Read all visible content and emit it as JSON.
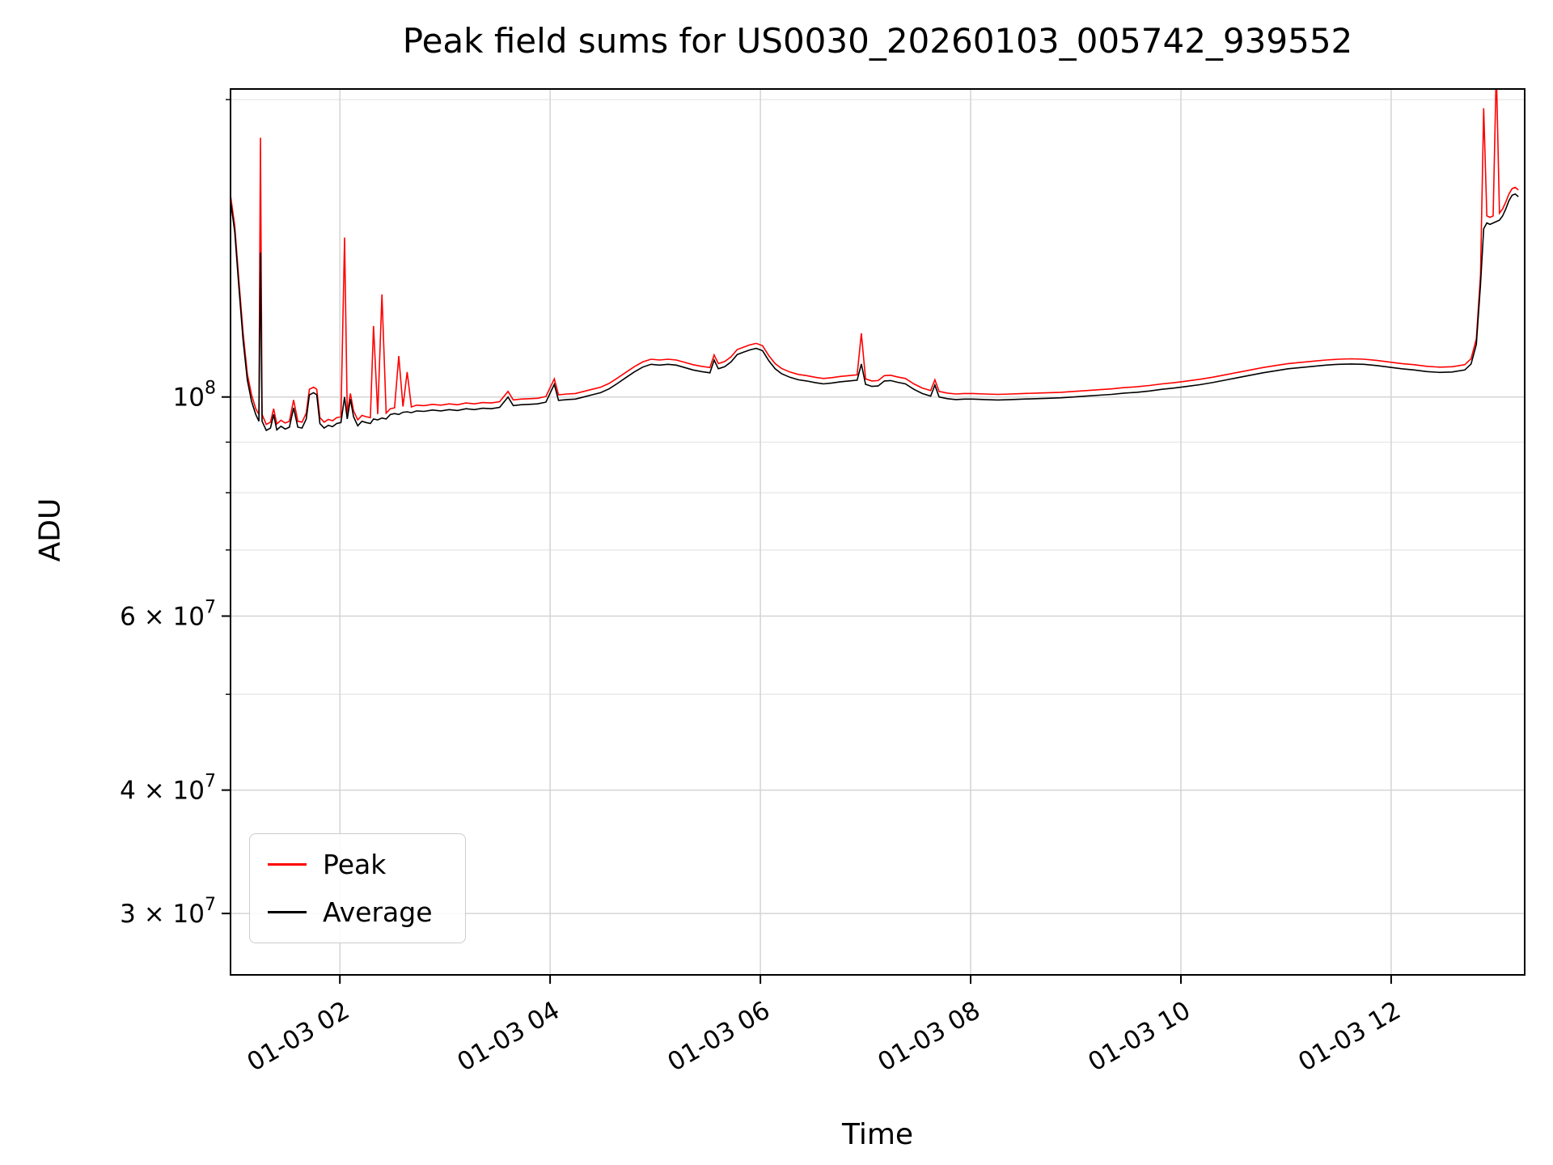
{
  "chart_data": {
    "type": "line",
    "title": "Peak field sums for US0030_20260103_005742_939552",
    "xlabel": "Time",
    "ylabel": "ADU",
    "legend_position": "lower left",
    "grid": true,
    "grid_major_color": "#d4d4d4",
    "grid_minor_color": "#e7e7e7",
    "y_scale": "log",
    "y_unit": "ADU, values stored in millions (1e6)",
    "x_unit": "hours since 2026-01-03 00:00",
    "xlim_hours": [
      0.96,
      13.27
    ],
    "ylim_millions": [
      26,
      205
    ],
    "x_ticks": [
      {
        "value": 2,
        "label": "01-03 02"
      },
      {
        "value": 4,
        "label": "01-03 04"
      },
      {
        "value": 6,
        "label": "01-03 06"
      },
      {
        "value": 8,
        "label": "01-03 08"
      },
      {
        "value": 10,
        "label": "01-03 10"
      },
      {
        "value": 12,
        "label": "01-03 12"
      }
    ],
    "y_ticks": [
      {
        "value": 100,
        "base": "10",
        "exp": "8"
      },
      {
        "value": 60,
        "base": "6 × 10",
        "exp": "7"
      },
      {
        "value": 40,
        "base": "4 × 10",
        "exp": "7"
      },
      {
        "value": 30,
        "base": "3 × 10",
        "exp": "7"
      }
    ],
    "y_minor_gridlines": [
      50,
      70,
      80,
      90,
      200
    ],
    "series": [
      {
        "name": "Peak",
        "color": "#ff0000",
        "column": 2
      },
      {
        "name": "Average",
        "color": "#000000",
        "column": 1
      }
    ],
    "columns": [
      "time_hours",
      "average_millions",
      "peak_millions"
    ],
    "points": [
      [
        0.96,
        158,
        160
      ],
      [
        1.0,
        147,
        149
      ],
      [
        1.04,
        129,
        131
      ],
      [
        1.08,
        114,
        116
      ],
      [
        1.12,
        104,
        105.5
      ],
      [
        1.16,
        99,
        100.5
      ],
      [
        1.2,
        96,
        97.3
      ],
      [
        1.23,
        94.5,
        96
      ],
      [
        1.245,
        140,
        183
      ],
      [
        1.26,
        94.5,
        96
      ],
      [
        1.3,
        92.5,
        93.8
      ],
      [
        1.34,
        93,
        94.3
      ],
      [
        1.37,
        96,
        97.3
      ],
      [
        1.4,
        92.6,
        93.9
      ],
      [
        1.44,
        93.4,
        94.7
      ],
      [
        1.48,
        92.8,
        94.1
      ],
      [
        1.52,
        93.2,
        94.5
      ],
      [
        1.56,
        97.5,
        99.3
      ],
      [
        1.6,
        93.2,
        94.5
      ],
      [
        1.64,
        93,
        94.3
      ],
      [
        1.68,
        95,
        96.3
      ],
      [
        1.71,
        100.5,
        101.8
      ],
      [
        1.75,
        101,
        102.3
      ],
      [
        1.78,
        100.5,
        101.8
      ],
      [
        1.81,
        94,
        95.3
      ],
      [
        1.85,
        93,
        94.3
      ],
      [
        1.89,
        93.6,
        94.9
      ],
      [
        1.93,
        93.3,
        94.6
      ],
      [
        1.97,
        94,
        95.3
      ],
      [
        2.01,
        94.2,
        95.5
      ],
      [
        2.045,
        100,
        145
      ],
      [
        2.07,
        95,
        96.3
      ],
      [
        2.1,
        99.5,
        100.8
      ],
      [
        2.13,
        95.5,
        96.8
      ],
      [
        2.17,
        93.5,
        94.8
      ],
      [
        2.21,
        94.5,
        95.8
      ],
      [
        2.25,
        94.2,
        95.5
      ],
      [
        2.29,
        94,
        95.3
      ],
      [
        2.32,
        95,
        118
      ],
      [
        2.36,
        94.8,
        96.1
      ],
      [
        2.4,
        95.2,
        127
      ],
      [
        2.44,
        95,
        96.3
      ],
      [
        2.48,
        96,
        97.3
      ],
      [
        2.52,
        96.2,
        97.5
      ],
      [
        2.56,
        96,
        110
      ],
      [
        2.6,
        96.5,
        97.8
      ],
      [
        2.64,
        96.6,
        106
      ],
      [
        2.68,
        96.4,
        97.7
      ],
      [
        2.73,
        96.8,
        98.1
      ],
      [
        2.8,
        96.7,
        98
      ],
      [
        2.88,
        97,
        98.3
      ],
      [
        2.96,
        96.8,
        98.1
      ],
      [
        3.04,
        97.1,
        98.4
      ],
      [
        3.12,
        96.9,
        98.2
      ],
      [
        3.2,
        97.3,
        98.6
      ],
      [
        3.28,
        97.1,
        98.4
      ],
      [
        3.36,
        97.4,
        98.7
      ],
      [
        3.44,
        97.3,
        98.6
      ],
      [
        3.52,
        97.6,
        98.9
      ],
      [
        3.6,
        100,
        101.3
      ],
      [
        3.65,
        98,
        99.3
      ],
      [
        3.72,
        98.2,
        99.5
      ],
      [
        3.8,
        98.3,
        99.6
      ],
      [
        3.88,
        98.4,
        99.7
      ],
      [
        3.96,
        98.8,
        100.1
      ],
      [
        4.04,
        103,
        104.3
      ],
      [
        4.08,
        99.2,
        100.5
      ],
      [
        4.16,
        99.4,
        100.7
      ],
      [
        4.24,
        99.5,
        100.8
      ],
      [
        4.32,
        100,
        101.3
      ],
      [
        4.4,
        100.5,
        101.8
      ],
      [
        4.48,
        101,
        102.3
      ],
      [
        4.56,
        101.9,
        103.2
      ],
      [
        4.64,
        103.2,
        104.5
      ],
      [
        4.72,
        104.6,
        105.9
      ],
      [
        4.8,
        106,
        107.3
      ],
      [
        4.88,
        107.2,
        108.5
      ],
      [
        4.96,
        107.9,
        109.2
      ],
      [
        5.04,
        107.7,
        109
      ],
      [
        5.12,
        107.9,
        109.2
      ],
      [
        5.2,
        107.7,
        109
      ],
      [
        5.28,
        107.1,
        108.4
      ],
      [
        5.36,
        106.5,
        107.8
      ],
      [
        5.44,
        106.1,
        107.4
      ],
      [
        5.52,
        105.8,
        107.1
      ],
      [
        5.56,
        109,
        110.3
      ],
      [
        5.6,
        106.8,
        108.1
      ],
      [
        5.66,
        107.3,
        108.6
      ],
      [
        5.72,
        108.5,
        109.8
      ],
      [
        5.78,
        110.4,
        111.7
      ],
      [
        5.84,
        111,
        112.3
      ],
      [
        5.9,
        111.6,
        112.9
      ],
      [
        5.96,
        112,
        113.3
      ],
      [
        6.02,
        111.4,
        112.7
      ],
      [
        6.08,
        108.8,
        110.1
      ],
      [
        6.14,
        106.8,
        108.1
      ],
      [
        6.2,
        105.6,
        106.9
      ],
      [
        6.28,
        104.7,
        106
      ],
      [
        6.36,
        104.1,
        105.4
      ],
      [
        6.44,
        103.8,
        105.1
      ],
      [
        6.52,
        103.4,
        104.7
      ],
      [
        6.6,
        103.1,
        104.4
      ],
      [
        6.68,
        103.3,
        104.6
      ],
      [
        6.76,
        103.6,
        104.9
      ],
      [
        6.84,
        103.8,
        105.1
      ],
      [
        6.92,
        104,
        105.3
      ],
      [
        6.96,
        108,
        116
      ],
      [
        7.0,
        103,
        104.3
      ],
      [
        7.06,
        102.5,
        103.8
      ],
      [
        7.12,
        102.6,
        103.9
      ],
      [
        7.18,
        103.8,
        105.1
      ],
      [
        7.24,
        103.9,
        105.2
      ],
      [
        7.3,
        103.5,
        104.8
      ],
      [
        7.38,
        103.1,
        104.4
      ],
      [
        7.46,
        101.8,
        103.1
      ],
      [
        7.54,
        100.8,
        102.1
      ],
      [
        7.62,
        100.2,
        101.5
      ],
      [
        7.66,
        102.8,
        104.1
      ],
      [
        7.7,
        100,
        101.3
      ],
      [
        7.78,
        99.6,
        100.9
      ],
      [
        7.86,
        99.4,
        100.7
      ],
      [
        7.94,
        99.5,
        100.8
      ],
      [
        8.02,
        99.5,
        100.8
      ],
      [
        8.14,
        99.4,
        100.7
      ],
      [
        8.26,
        99.3,
        100.6
      ],
      [
        8.38,
        99.4,
        100.7
      ],
      [
        8.5,
        99.5,
        100.8
      ],
      [
        8.62,
        99.6,
        100.9
      ],
      [
        8.74,
        99.7,
        101
      ],
      [
        8.86,
        99.8,
        101.1
      ],
      [
        8.98,
        100,
        101.3
      ],
      [
        9.1,
        100.2,
        101.5
      ],
      [
        9.22,
        100.4,
        101.7
      ],
      [
        9.34,
        100.6,
        101.9
      ],
      [
        9.46,
        100.9,
        102.2
      ],
      [
        9.58,
        101.1,
        102.4
      ],
      [
        9.7,
        101.4,
        102.7
      ],
      [
        9.82,
        101.8,
        103.1
      ],
      [
        9.94,
        102.1,
        103.4
      ],
      [
        10.06,
        102.5,
        103.8
      ],
      [
        10.18,
        102.9,
        104.2
      ],
      [
        10.3,
        103.4,
        104.7
      ],
      [
        10.42,
        104,
        105.3
      ],
      [
        10.54,
        104.6,
        105.9
      ],
      [
        10.66,
        105.2,
        106.5
      ],
      [
        10.78,
        105.8,
        107.1
      ],
      [
        10.9,
        106.3,
        107.6
      ],
      [
        11.02,
        106.8,
        108.1
      ],
      [
        11.14,
        107.1,
        108.4
      ],
      [
        11.26,
        107.4,
        108.7
      ],
      [
        11.38,
        107.7,
        109
      ],
      [
        11.5,
        107.9,
        109.2
      ],
      [
        11.62,
        108,
        109.3
      ],
      [
        11.74,
        107.9,
        109.2
      ],
      [
        11.86,
        107.6,
        108.9
      ],
      [
        11.98,
        107.2,
        108.5
      ],
      [
        12.1,
        106.8,
        108.1
      ],
      [
        12.22,
        106.5,
        107.8
      ],
      [
        12.34,
        106.1,
        107.4
      ],
      [
        12.46,
        105.9,
        107.2
      ],
      [
        12.58,
        106,
        107.3
      ],
      [
        12.7,
        106.5,
        107.8
      ],
      [
        12.76,
        108,
        109.3
      ],
      [
        12.81,
        113,
        114.5
      ],
      [
        12.85,
        130,
        133
      ],
      [
        12.88,
        148,
        196
      ],
      [
        12.91,
        150,
        152.5
      ],
      [
        12.94,
        149.5,
        152
      ],
      [
        12.97,
        150,
        152.5
      ],
      [
        13.0,
        150.5,
        215
      ],
      [
        13.03,
        151,
        153.5
      ],
      [
        13.06,
        152.5,
        155
      ],
      [
        13.09,
        155,
        157.5
      ],
      [
        13.12,
        158,
        160.5
      ],
      [
        13.15,
        160,
        162.5
      ],
      [
        13.18,
        160.5,
        163
      ],
      [
        13.21,
        159.5,
        162
      ]
    ]
  }
}
